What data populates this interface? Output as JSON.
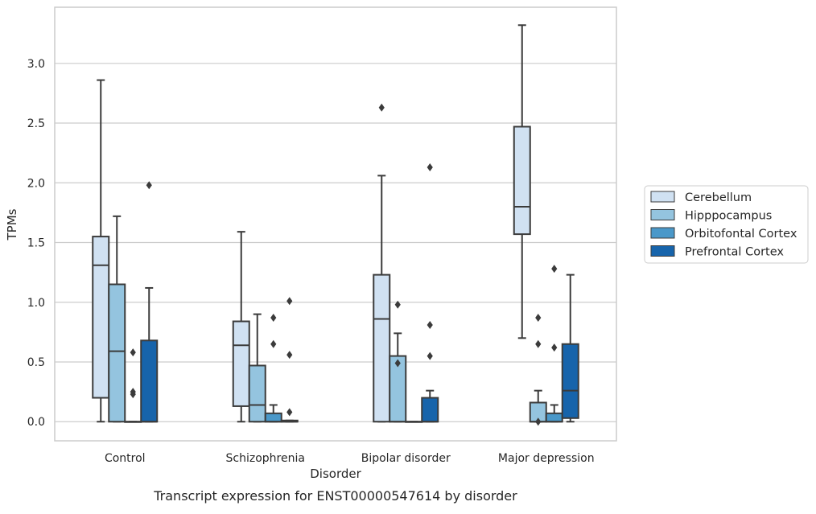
{
  "chart_data": {
    "type": "box",
    "title": "",
    "caption": "Transcript expression for ENST00000547614 by disorder",
    "xlabel": "Disorder",
    "ylabel": "TPMs",
    "ylim": [
      -0.16,
      3.47
    ],
    "yticks": [
      "0.0",
      "0.5",
      "1.0",
      "1.5",
      "2.0",
      "2.5",
      "3.0"
    ],
    "grid": "horizontal",
    "legend_position": "right",
    "categories": [
      "Control",
      "Schizophrenia",
      "Bipolar disorder",
      "Major depression"
    ],
    "series": [
      {
        "name": "Cerebellum",
        "color": "#d0e1f2",
        "boxes": [
          {
            "whislo": 0.0,
            "q1": 0.2,
            "med": 1.31,
            "q3": 1.55,
            "whishi": 2.86,
            "fliers": []
          },
          {
            "whislo": 0.0,
            "q1": 0.13,
            "med": 0.64,
            "q3": 0.84,
            "whishi": 1.59,
            "fliers": []
          },
          {
            "whislo": 0.0,
            "q1": 0.0,
            "med": 0.86,
            "q3": 1.23,
            "whishi": 2.06,
            "fliers": [
              2.63
            ]
          },
          {
            "whislo": 0.7,
            "q1": 1.57,
            "med": 1.8,
            "q3": 2.47,
            "whishi": 3.32,
            "fliers": []
          }
        ]
      },
      {
        "name": "Hipppocampus",
        "color": "#94c4df",
        "boxes": [
          {
            "whislo": 0.0,
            "q1": 0.0,
            "med": 0.59,
            "q3": 1.15,
            "whishi": 1.72,
            "fliers": []
          },
          {
            "whislo": 0.0,
            "q1": 0.0,
            "med": 0.14,
            "q3": 0.47,
            "whishi": 0.9,
            "fliers": []
          },
          {
            "whislo": 0.0,
            "q1": 0.0,
            "med": 0.0,
            "q3": 0.55,
            "whishi": 0.74,
            "fliers": [
              0.98,
              0.49
            ]
          },
          {
            "whislo": 0.0,
            "q1": 0.0,
            "med": 0.0,
            "q3": 0.16,
            "whishi": 0.26,
            "fliers": [
              0.0,
              0.87,
              0.65
            ]
          }
        ]
      },
      {
        "name": "Orbitofontal Cortex",
        "color": "#4a98c9",
        "boxes": [
          {
            "whislo": 0.0,
            "q1": 0.0,
            "med": 0.0,
            "q3": 0.0,
            "whishi": 0.0,
            "fliers": [
              0.58,
              0.25,
              0.23
            ]
          },
          {
            "whislo": 0.0,
            "q1": 0.0,
            "med": 0.0,
            "q3": 0.07,
            "whishi": 0.14,
            "fliers": [
              0.87,
              0.65
            ]
          },
          {
            "whislo": 0.0,
            "q1": 0.0,
            "med": 0.0,
            "q3": 0.0,
            "whishi": 0.0,
            "fliers": []
          },
          {
            "whislo": 0.0,
            "q1": 0.0,
            "med": 0.0,
            "q3": 0.07,
            "whishi": 0.14,
            "fliers": [
              1.28,
              0.62
            ]
          }
        ]
      },
      {
        "name": "Prefrontal Cortex",
        "color": "#1764ab",
        "boxes": [
          {
            "whislo": 0.0,
            "q1": 0.0,
            "med": 0.0,
            "q3": 0.68,
            "whishi": 1.12,
            "fliers": [
              1.98
            ]
          },
          {
            "whislo": 0.0,
            "q1": 0.0,
            "med": 0.0,
            "q3": 0.01,
            "whishi": 0.01,
            "fliers": [
              1.01,
              0.56,
              0.08
            ]
          },
          {
            "whislo": 0.0,
            "q1": 0.0,
            "med": 0.0,
            "q3": 0.2,
            "whishi": 0.26,
            "fliers": [
              2.13,
              0.81,
              0.55
            ]
          },
          {
            "whislo": 0.0,
            "q1": 0.03,
            "med": 0.26,
            "q3": 0.65,
            "whishi": 1.23,
            "fliers": []
          }
        ]
      }
    ]
  }
}
